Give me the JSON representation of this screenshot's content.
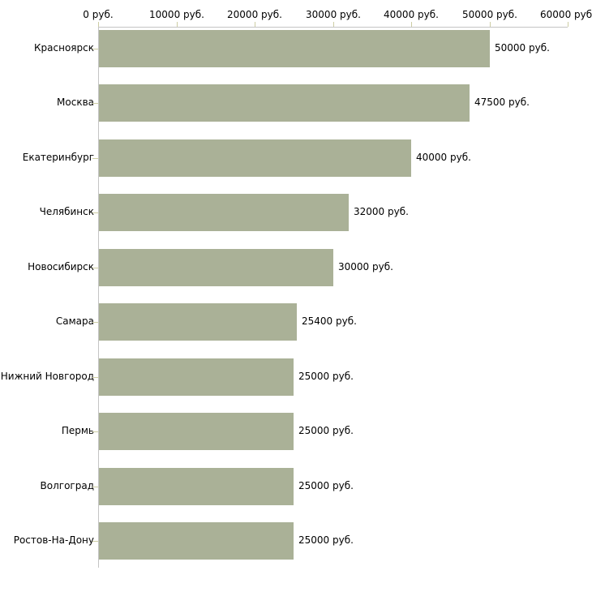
{
  "chart_data": {
    "type": "bar",
    "orientation": "horizontal",
    "title": "",
    "xlabel": "",
    "ylabel": "",
    "xlim": [
      0,
      60000
    ],
    "grid": false,
    "legend": "none",
    "categories": [
      "Красноярск",
      "Москва",
      "Екатеринбург",
      "Челябинск",
      "Новосибирск",
      "Самара",
      "Нижний Новгород",
      "Пермь",
      "Волгоград",
      "Ростов-На-Дону"
    ],
    "values": [
      50000,
      47500,
      40000,
      32000,
      30000,
      25400,
      25000,
      25000,
      25000,
      25000
    ],
    "value_labels": [
      "50000 руб.",
      "47500 руб.",
      "40000 руб.",
      "32000 руб.",
      "30000 руб.",
      "25400 руб.",
      "25000 руб.",
      "25000 руб.",
      "25000 руб.",
      "25000 руб."
    ],
    "x_ticks": [
      0,
      10000,
      20000,
      30000,
      40000,
      50000,
      60000
    ],
    "x_tick_labels": [
      "0 руб.",
      "10000 руб.",
      "20000 руб.",
      "30000 руб.",
      "40000 руб.",
      "50000 руб.",
      "60000 руб."
    ],
    "colors": {
      "bar": "#aab197",
      "axis_line": "#c4c4c4",
      "tick": "#cdcda3",
      "text": "#000000",
      "background": "#ffffff"
    }
  }
}
